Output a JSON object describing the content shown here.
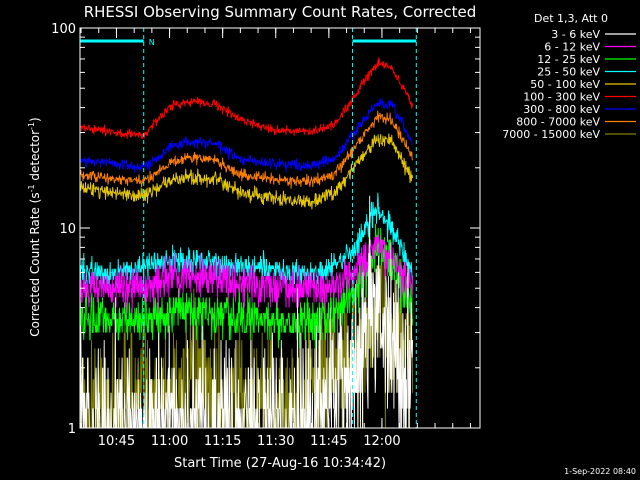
{
  "chart_data": {
    "type": "line",
    "title": "RHESSI Observing Summary Count Rates, Corrected",
    "xlabel": "Start Time (27-Aug-16 10:34:42)",
    "ylabel_main": "Corrected Count Rate (s",
    "ylabel_sup1": "-1",
    "ylabel_mid": " detector",
    "ylabel_sup2": "-1",
    "ylabel_end": ")",
    "yscale": "log",
    "ylim": [
      1,
      100
    ],
    "y_ticks": [
      {
        "value": 1,
        "label": "1"
      },
      {
        "value": 10,
        "label": "10"
      },
      {
        "value": 100,
        "label": "100"
      }
    ],
    "xlim_minutes": [
      0,
      113
    ],
    "x_ticks": [
      {
        "minute": 10.3,
        "label": "10:45"
      },
      {
        "minute": 25.3,
        "label": "11:00"
      },
      {
        "minute": 40.3,
        "label": "11:15"
      },
      {
        "minute": 55.3,
        "label": "11:30"
      },
      {
        "minute": 70.3,
        "label": "11:45"
      },
      {
        "minute": 85.3,
        "label": "12:00"
      }
    ],
    "legend_header": "Det 1,3, Att 0",
    "legend_placement": "right",
    "flag_label": "N",
    "flag_color": "#00ffff",
    "flag_bars": [
      {
        "start_minute": 0,
        "end_minute": 18
      },
      {
        "start_minute": 77,
        "end_minute": 95
      }
    ],
    "flag_lines_minutes": [
      18,
      77,
      95
    ],
    "data_end_minute": 94,
    "series": [
      {
        "name": "3 - 6 keV",
        "color": "#ffffff",
        "x": [
          0,
          20,
          30,
          40,
          60,
          78,
          84,
          88,
          94
        ],
        "y": [
          1,
          1,
          1,
          1,
          1,
          2,
          4.5,
          3,
          1.5
        ],
        "noise": 1.0,
        "quant": true
      },
      {
        "name": "6 - 12 keV",
        "color": "#ff00ff",
        "x": [
          0,
          10,
          20,
          30,
          40,
          60,
          70,
          78,
          84,
          88,
          94
        ],
        "y": [
          5,
          5,
          5,
          6,
          5.5,
          5,
          5,
          6,
          8,
          7,
          5
        ],
        "noise": 0.22,
        "quant": true
      },
      {
        "name": "12 - 25 keV",
        "color": "#00ff00",
        "x": [
          0,
          20,
          30,
          40,
          60,
          70,
          78,
          84,
          88,
          94
        ],
        "y": [
          3.5,
          3.5,
          4,
          3.5,
          3.5,
          3.5,
          5,
          8,
          7,
          4
        ],
        "noise": 0.25,
        "quant": true
      },
      {
        "name": "25 - 50 keV",
        "color": "#00ffff",
        "x": [
          0,
          10,
          20,
          30,
          40,
          60,
          70,
          78,
          84,
          88,
          94
        ],
        "y": [
          6,
          6,
          6.5,
          7,
          6.5,
          6,
          6,
          8,
          13,
          10,
          6
        ],
        "noise": 0.15,
        "quant": true
      },
      {
        "name": "50 - 100 keV",
        "color": "#e6c800",
        "x": [
          0,
          10,
          18,
          25,
          30,
          38,
          45,
          55,
          65,
          72,
          78,
          84,
          88,
          92,
          94
        ],
        "y": [
          16,
          15,
          14.5,
          17,
          18,
          17.5,
          15,
          14,
          13.5,
          15,
          21,
          28,
          27,
          20,
          18
        ],
        "noise": 0.08
      },
      {
        "name": "100 - 300 keV",
        "color": "#ff0000",
        "x": [
          0,
          10,
          18,
          25,
          30,
          38,
          45,
          55,
          65,
          72,
          78,
          84,
          88,
          92,
          94
        ],
        "y": [
          32,
          30,
          29,
          40,
          43,
          42,
          35,
          31,
          30,
          33,
          47,
          67,
          63,
          48,
          41
        ],
        "noise": 0.05
      },
      {
        "name": "300 - 800 keV",
        "color": "#0000ff",
        "x": [
          0,
          10,
          18,
          25,
          30,
          38,
          45,
          55,
          65,
          72,
          78,
          84,
          88,
          92,
          94
        ],
        "y": [
          22,
          21,
          20,
          25,
          27,
          26.5,
          22,
          21,
          20.5,
          22,
          31,
          42,
          41,
          31,
          26
        ],
        "noise": 0.06
      },
      {
        "name": "800 - 7000 keV",
        "color": "#ff8000",
        "x": [
          0,
          10,
          18,
          25,
          30,
          38,
          45,
          55,
          65,
          72,
          78,
          84,
          88,
          92,
          94
        ],
        "y": [
          18.5,
          17.5,
          17,
          21,
          22.5,
          22,
          18.5,
          17.5,
          17,
          18.5,
          26,
          36,
          35,
          26,
          22
        ],
        "noise": 0.06
      },
      {
        "name": "7000 - 15000 keV",
        "color": "#808000",
        "x": [
          0,
          20,
          30,
          40,
          60,
          78,
          84,
          88,
          94
        ],
        "y": [
          1.2,
          1.4,
          1.6,
          1.3,
          1.3,
          2.5,
          3.5,
          3,
          2
        ],
        "noise": 0.8,
        "quant": true
      }
    ],
    "timestamp": "1-Sep-2022 08:40"
  }
}
